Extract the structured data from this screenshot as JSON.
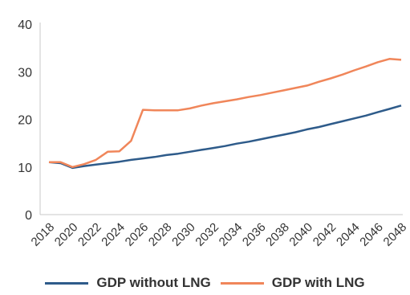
{
  "chart_data": {
    "type": "line",
    "x": [
      2018,
      2019,
      2020,
      2021,
      2022,
      2023,
      2024,
      2025,
      2026,
      2027,
      2028,
      2029,
      2030,
      2031,
      2032,
      2033,
      2034,
      2035,
      2036,
      2037,
      2038,
      2039,
      2040,
      2041,
      2042,
      2043,
      2044,
      2045,
      2046,
      2047,
      2048
    ],
    "xticks": [
      "2018",
      "2020",
      "2022",
      "2024",
      "2026",
      "2028",
      "2030",
      "2032",
      "2034",
      "2036",
      "2038",
      "2040",
      "2042",
      "2044",
      "2046",
      "2048"
    ],
    "yticks": [
      "0",
      "10",
      "20",
      "30",
      "40"
    ],
    "ylim": [
      0,
      40
    ],
    "grid": false,
    "legend_position": "bottom",
    "series": [
      {
        "name": "GDP without LNG",
        "color": "#2e5b8a",
        "values": [
          11.0,
          10.8,
          9.8,
          10.2,
          10.5,
          10.8,
          11.1,
          11.5,
          11.8,
          12.1,
          12.5,
          12.8,
          13.2,
          13.6,
          14.0,
          14.4,
          14.9,
          15.3,
          15.8,
          16.3,
          16.8,
          17.3,
          17.9,
          18.4,
          19.0,
          19.6,
          20.2,
          20.8,
          21.5,
          22.2,
          22.9
        ]
      },
      {
        "name": "GDP with LNG",
        "color": "#f0865a",
        "values": [
          11.0,
          11.0,
          10.0,
          10.6,
          11.5,
          13.2,
          13.3,
          15.5,
          22.0,
          21.9,
          21.9,
          21.9,
          22.3,
          22.9,
          23.4,
          23.8,
          24.2,
          24.7,
          25.1,
          25.6,
          26.1,
          26.6,
          27.1,
          27.9,
          28.6,
          29.4,
          30.3,
          31.1,
          32.0,
          32.7,
          32.5
        ]
      }
    ]
  }
}
